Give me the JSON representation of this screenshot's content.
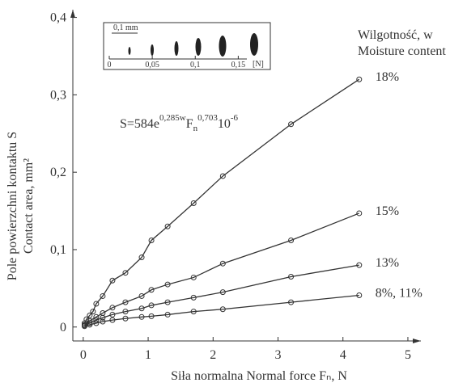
{
  "chart_data": {
    "type": "line",
    "xlabel": "Siła normalna Normal force  Fₙ, N",
    "ylabel": [
      "Pole powierzchni kontaktu  S",
      "Contact area,  mm²"
    ],
    "legend_title": [
      "Wilgotność,  w",
      "Moisture content"
    ],
    "formula": [
      "S=584e",
      "0,285w",
      "F",
      "n",
      "0,703",
      "10",
      "-6"
    ],
    "xlim": [
      -0.16,
      5.2
    ],
    "ylim": [
      -0.018,
      0.41
    ],
    "xticks": [
      0,
      1,
      2,
      3,
      4,
      5
    ],
    "yticks": [
      0,
      {
        "value": 0.1,
        "label": "0,1"
      },
      {
        "value": 0.2,
        "label": "0,2"
      },
      {
        "value": 0.3,
        "label": "0,3"
      },
      {
        "value": 0.4,
        "label": "0,4"
      }
    ],
    "color": "#333333",
    "series": [
      {
        "name": "18%",
        "x": [
          0.02,
          0.05,
          0.1,
          0.15,
          0.2,
          0.3,
          0.45,
          0.65,
          0.9,
          1.05,
          1.3,
          1.7,
          2.15,
          3.2,
          4.25
        ],
        "values": [
          0.005,
          0.01,
          0.015,
          0.02,
          0.03,
          0.04,
          0.06,
          0.07,
          0.09,
          0.112,
          0.13,
          0.16,
          0.195,
          0.262,
          0.32
        ]
      },
      {
        "name": "15%",
        "x": [
          0.02,
          0.1,
          0.2,
          0.3,
          0.45,
          0.65,
          0.9,
          1.05,
          1.3,
          1.7,
          2.15,
          3.2,
          4.25
        ],
        "values": [
          0.003,
          0.008,
          0.013,
          0.018,
          0.025,
          0.032,
          0.04,
          0.048,
          0.055,
          0.064,
          0.082,
          0.112,
          0.147
        ]
      },
      {
        "name": "13%",
        "x": [
          0.02,
          0.1,
          0.2,
          0.3,
          0.45,
          0.65,
          0.9,
          1.05,
          1.3,
          1.7,
          2.15,
          3.2,
          4.25
        ],
        "values": [
          0.002,
          0.005,
          0.009,
          0.012,
          0.016,
          0.02,
          0.024,
          0.028,
          0.032,
          0.038,
          0.045,
          0.065,
          0.08
        ]
      },
      {
        "name": "8%, 11%",
        "x": [
          0.02,
          0.1,
          0.2,
          0.3,
          0.45,
          0.65,
          0.9,
          1.05,
          1.3,
          1.7,
          2.15,
          3.2,
          4.25
        ],
        "values": [
          0.001,
          0.003,
          0.005,
          0.007,
          0.009,
          0.011,
          0.013,
          0.014,
          0.016,
          0.02,
          0.023,
          0.032,
          0.041
        ]
      }
    ],
    "inset": {
      "scale_label": "0,1 mm",
      "unit": "[N]",
      "xlim": [
        0,
        0.16
      ],
      "xticks": [
        0,
        {
          "value": 0.05,
          "label": "0,05"
        },
        {
          "value": 0.1,
          "label": "0,1"
        },
        {
          "value": 0.15,
          "label": "0,15"
        }
      ]
    }
  }
}
